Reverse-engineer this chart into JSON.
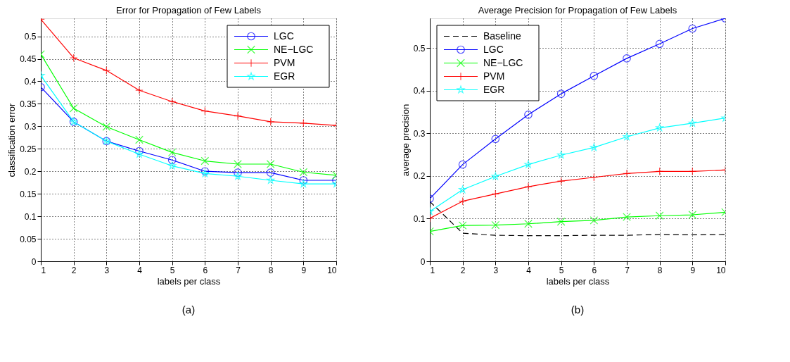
{
  "chart_data": [
    {
      "type": "line",
      "title": "Error for Propagation of Few Labels",
      "xlabel": "labels per class",
      "ylabel": "classification error",
      "annotations": [
        "(a)"
      ],
      "x": [
        1,
        2,
        3,
        4,
        5,
        6,
        7,
        8,
        9,
        10
      ],
      "xlim": [
        1,
        10
      ],
      "xticks": [
        1,
        2,
        3,
        4,
        5,
        6,
        7,
        8,
        9,
        10
      ],
      "ylim": [
        0,
        0.54
      ],
      "yticks": [
        0,
        0.05,
        0.1,
        0.15,
        0.2,
        0.25,
        0.3,
        0.35,
        0.4,
        0.45,
        0.5
      ],
      "grid": true,
      "legend": "top right",
      "series": [
        {
          "name": "LGC",
          "color": "#0000ff",
          "marker": "circle",
          "line_style": "solid",
          "values": [
            0.387,
            0.31,
            0.267,
            0.245,
            0.225,
            0.2,
            0.197,
            0.197,
            0.18,
            0.18
          ]
        },
        {
          "name": "NE−LGC",
          "color": "#00ff00",
          "marker": "x",
          "line_style": "solid",
          "values": [
            0.46,
            0.34,
            0.299,
            0.27,
            0.242,
            0.223,
            0.216,
            0.216,
            0.198,
            0.191
          ]
        },
        {
          "name": "PVM",
          "color": "#ff0000",
          "marker": "cross",
          "line_style": "solid",
          "values": [
            0.538,
            0.452,
            0.424,
            0.38,
            0.355,
            0.334,
            0.323,
            0.31,
            0.307,
            0.302
          ]
        },
        {
          "name": "EGR",
          "color": "#00ffff",
          "marker": "star",
          "line_style": "solid",
          "values": [
            0.413,
            0.31,
            0.267,
            0.238,
            0.212,
            0.195,
            0.189,
            0.18,
            0.172,
            0.172
          ]
        }
      ]
    },
    {
      "type": "line",
      "title": "Average Precision for Propagation of Few Labels",
      "xlabel": "labels per class",
      "ylabel": "average precision",
      "annotations": [
        "(b)"
      ],
      "x": [
        1,
        2,
        3,
        4,
        5,
        6,
        7,
        8,
        9,
        10
      ],
      "xlim": [
        1,
        10
      ],
      "xticks": [
        1,
        2,
        3,
        4,
        5,
        6,
        7,
        8,
        9,
        10
      ],
      "ylim": [
        0,
        0.57
      ],
      "yticks": [
        0,
        0.1,
        0.2,
        0.3,
        0.4,
        0.5
      ],
      "grid": true,
      "legend": "top left",
      "series": [
        {
          "name": "Baseline",
          "color": "#000000",
          "marker": "none",
          "line_style": "dashed",
          "values": [
            0.14,
            0.066,
            0.061,
            0.06,
            0.06,
            0.061,
            0.061,
            0.063,
            0.062,
            0.063
          ]
        },
        {
          "name": "LGC",
          "color": "#0000ff",
          "marker": "circle",
          "line_style": "solid",
          "values": [
            0.147,
            0.227,
            0.287,
            0.344,
            0.393,
            0.435,
            0.476,
            0.51,
            0.546,
            0.57
          ]
        },
        {
          "name": "NE−LGC",
          "color": "#00ff00",
          "marker": "x",
          "line_style": "solid",
          "values": [
            0.07,
            0.084,
            0.085,
            0.088,
            0.093,
            0.096,
            0.104,
            0.107,
            0.109,
            0.115
          ]
        },
        {
          "name": "PVM",
          "color": "#ff0000",
          "marker": "cross",
          "line_style": "solid",
          "values": [
            0.101,
            0.141,
            0.158,
            0.175,
            0.188,
            0.197,
            0.206,
            0.211,
            0.211,
            0.214
          ]
        },
        {
          "name": "EGR",
          "color": "#00ffff",
          "marker": "star",
          "line_style": "solid",
          "values": [
            0.117,
            0.168,
            0.199,
            0.227,
            0.249,
            0.267,
            0.292,
            0.313,
            0.324,
            0.336
          ]
        }
      ]
    }
  ]
}
